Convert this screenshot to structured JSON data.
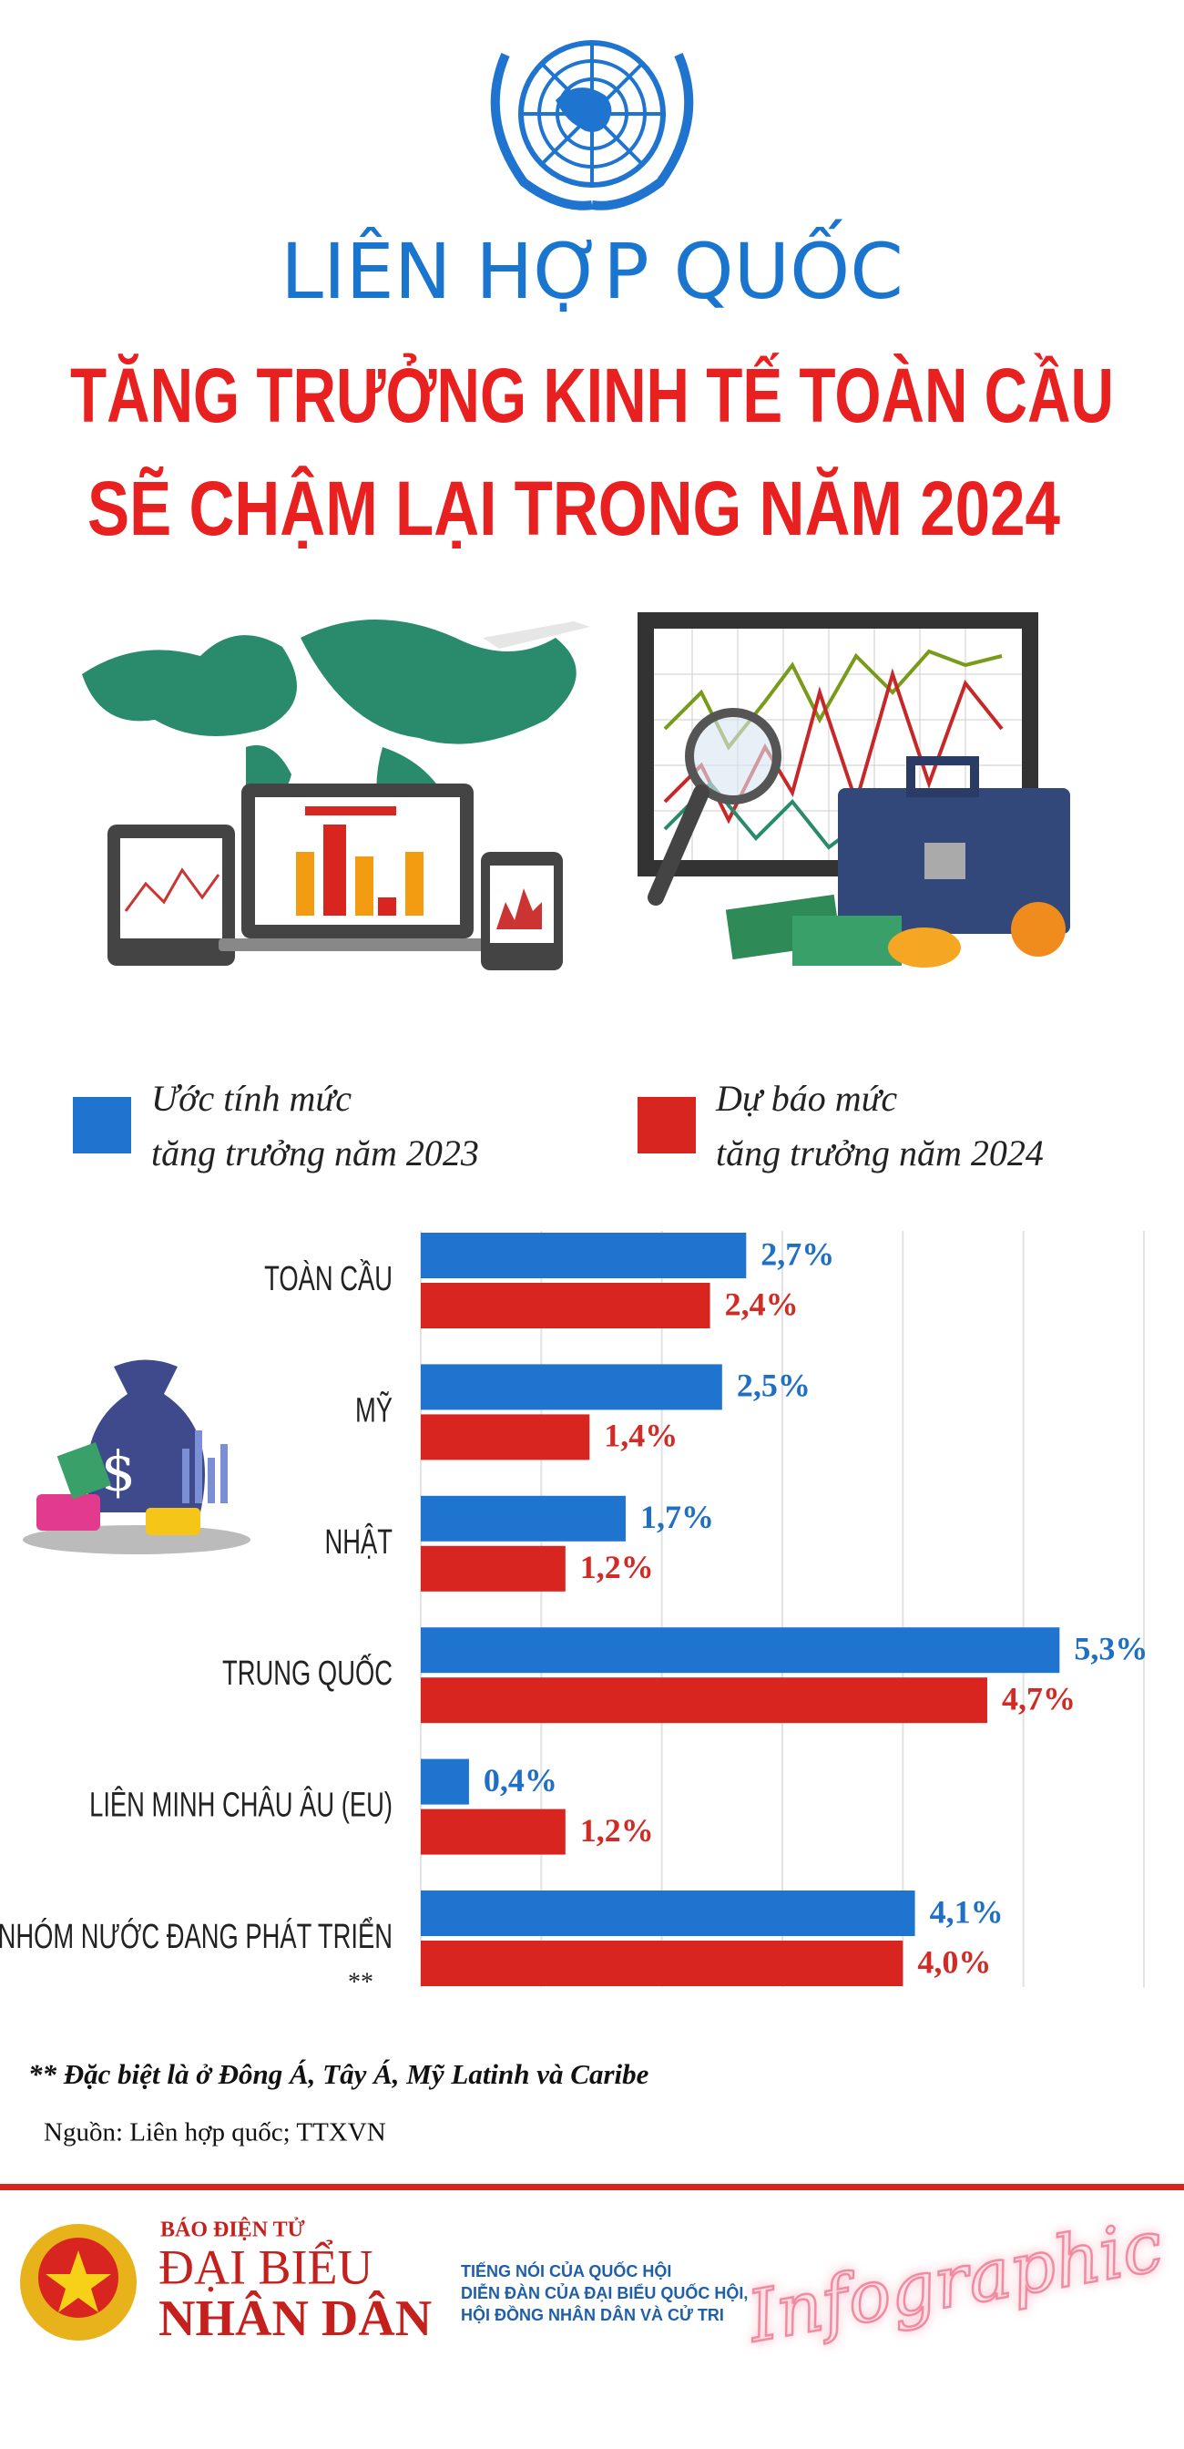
{
  "header": {
    "organization": "LIÊN HỢP QUỐC",
    "title_lines": [
      "TĂNG TRƯỞNG KINH TẾ TOÀN CẦU",
      "SẼ CHẬM LẠI TRONG NĂM 2024"
    ]
  },
  "chart_data": {
    "type": "bar",
    "orientation": "horizontal",
    "categories": [
      "TOÀN CẦU",
      "MỸ",
      "NHẬT",
      "TRUNG QUỐC",
      "LIÊN MINH CHÂU ÂU (EU)",
      "NHÓM NƯỚC ĐANG PHÁT TRIỂN"
    ],
    "category_notes": [
      null,
      null,
      null,
      null,
      null,
      "**"
    ],
    "series": [
      {
        "name": "Ước tính mức\ntăng trưởng năm 2023",
        "color": "#1f74cf",
        "values": [
          2.7,
          2.5,
          1.7,
          5.3,
          0.4,
          4.1
        ],
        "value_labels": [
          "2,7%",
          "2,5%",
          "1,7%",
          "5,3%",
          "0,4%",
          "4,1%"
        ],
        "label_color": "#1f6fc5"
      },
      {
        "name": "Dự báo mức\ntăng trưởng năm 2024",
        "color": "#d9251f",
        "values": [
          2.4,
          1.4,
          1.2,
          4.7,
          1.2,
          4.0
        ],
        "value_labels": [
          "2,4%",
          "1,4%",
          "1,2%",
          "4,7%",
          "1,2%",
          "4,0%"
        ],
        "label_color": "#d22a24"
      }
    ],
    "xlim": [
      0,
      6
    ],
    "xticks": [
      0,
      1,
      2,
      3,
      4,
      5,
      6
    ],
    "grid": true
  },
  "footnote": "** Đặc biệt là ở Đông Á, Tây Á, Mỹ Latinh và Caribe",
  "source": "Nguồn: Liên hợp quốc; TTXVN",
  "footer": {
    "kicker": "BÁO ĐIỆN TỬ",
    "brand_lines": [
      "ĐẠI BIỂU",
      "NHÂN DÂN"
    ],
    "tagline": [
      "TIẾNG NÓI CỦA QUỐC HỘI",
      "DIỄN ĐÀN CỦA ĐẠI BIỂU QUỐC HỘI,",
      "HỘI ĐỒNG NHÂN DÂN VÀ CỬ TRI"
    ],
    "badge": "Infographic"
  }
}
